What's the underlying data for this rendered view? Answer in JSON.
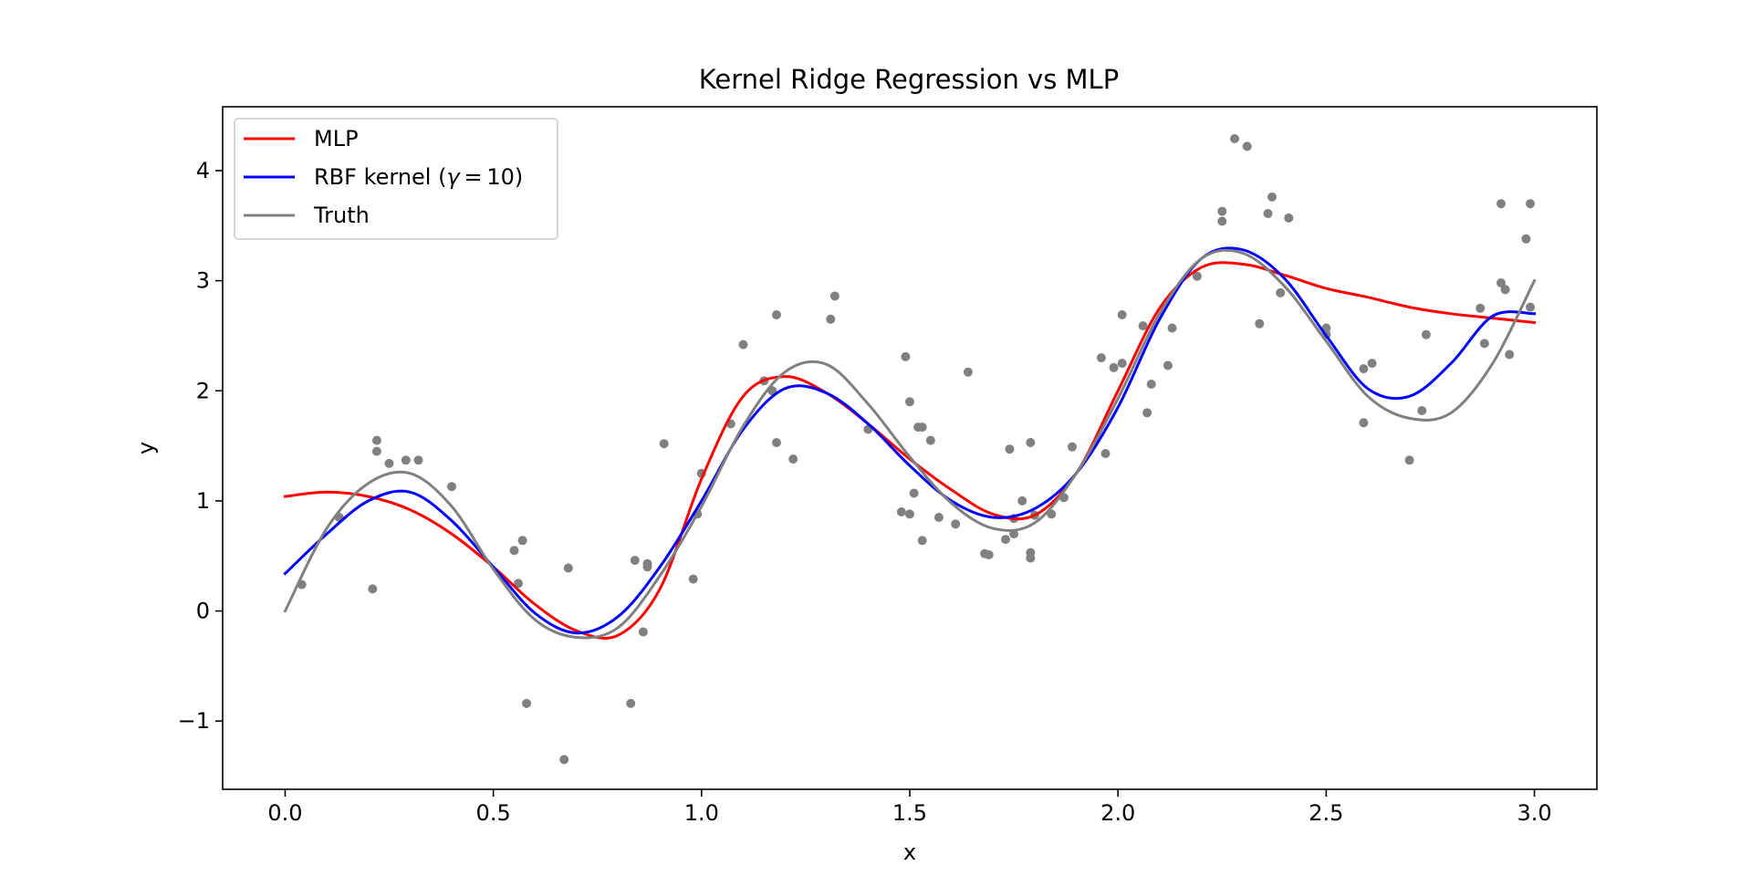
{
  "chart_data": {
    "type": "line",
    "title": "Kernel Ridge Regression vs MLP",
    "xlabel": "x",
    "ylabel": "y",
    "xlim": [
      -0.15,
      3.15
    ],
    "ylim": [
      -1.62,
      4.58
    ],
    "xticks": [
      0.0,
      0.5,
      1.0,
      1.5,
      2.0,
      2.5,
      3.0
    ],
    "xtick_labels": [
      "0.0",
      "0.5",
      "1.0",
      "1.5",
      "2.0",
      "2.5",
      "3.0"
    ],
    "yticks": [
      -1,
      0,
      1,
      2,
      3,
      4
    ],
    "ytick_labels": [
      "−1",
      "0",
      "1",
      "2",
      "3",
      "4"
    ],
    "grid": false,
    "legend_position": "top-left",
    "legend": {
      "mlp": "MLP",
      "rbf_prefix": "RBF kernel (",
      "rbf_gamma": "γ",
      "rbf_suffix": " = 10)",
      "truth": "Truth"
    },
    "series": [
      {
        "name": "MLP",
        "color": "#ff0000",
        "x": [
          0.0,
          0.1,
          0.2,
          0.3,
          0.4,
          0.5,
          0.6,
          0.7,
          0.8,
          0.9,
          1.0,
          1.1,
          1.2,
          1.3,
          1.4,
          1.5,
          1.6,
          1.7,
          1.8,
          1.9,
          2.0,
          2.1,
          2.2,
          2.3,
          2.4,
          2.5,
          2.6,
          2.7,
          2.8,
          2.9,
          3.0
        ],
        "y": [
          1.04,
          1.08,
          1.04,
          0.92,
          0.7,
          0.4,
          0.06,
          -0.18,
          -0.22,
          0.2,
          1.2,
          1.95,
          2.13,
          1.98,
          1.7,
          1.38,
          1.1,
          0.88,
          0.87,
          1.25,
          2.0,
          2.75,
          3.12,
          3.15,
          3.05,
          2.93,
          2.85,
          2.76,
          2.7,
          2.66,
          2.62
        ]
      },
      {
        "name": "RBF kernel (γ = 10)",
        "color": "#0000ff",
        "x": [
          0.0,
          0.1,
          0.2,
          0.3,
          0.4,
          0.5,
          0.6,
          0.7,
          0.8,
          0.9,
          1.0,
          1.1,
          1.2,
          1.3,
          1.4,
          1.5,
          1.6,
          1.7,
          1.8,
          1.9,
          2.0,
          2.1,
          2.2,
          2.3,
          2.4,
          2.5,
          2.6,
          2.7,
          2.8,
          2.9,
          3.0
        ],
        "y": [
          0.34,
          0.7,
          1.0,
          1.08,
          0.82,
          0.4,
          -0.02,
          -0.2,
          -0.05,
          0.4,
          1.0,
          1.65,
          2.02,
          1.98,
          1.7,
          1.32,
          1.0,
          0.85,
          0.93,
          1.25,
          1.85,
          2.65,
          3.2,
          3.28,
          3.02,
          2.5,
          2.02,
          1.95,
          2.25,
          2.68,
          2.7
        ]
      },
      {
        "name": "Truth",
        "color": "#808080",
        "x": [
          0.0,
          0.1,
          0.2,
          0.3,
          0.4,
          0.5,
          0.6,
          0.7,
          0.8,
          0.9,
          1.0,
          1.1,
          1.2,
          1.3,
          1.4,
          1.5,
          1.6,
          1.7,
          1.8,
          1.9,
          2.0,
          2.1,
          2.2,
          2.3,
          2.4,
          2.5,
          2.6,
          2.7,
          2.8,
          2.9,
          3.0
        ],
        "y": [
          0.0,
          0.75,
          1.16,
          1.25,
          0.95,
          0.38,
          -0.08,
          -0.24,
          -0.15,
          0.32,
          0.95,
          1.68,
          2.17,
          2.24,
          1.88,
          1.4,
          0.98,
          0.75,
          0.8,
          1.25,
          1.93,
          2.7,
          3.2,
          3.25,
          2.95,
          2.45,
          1.95,
          1.75,
          1.8,
          2.25,
          3.0
        ]
      }
    ],
    "scatter": {
      "color": "#808080",
      "x": [
        0.04,
        0.13,
        0.21,
        0.22,
        0.22,
        0.25,
        0.29,
        0.32,
        0.4,
        0.55,
        0.56,
        0.57,
        0.58,
        0.67,
        0.68,
        0.83,
        0.84,
        0.86,
        0.87,
        0.87,
        0.91,
        0.98,
        0.99,
        1.0,
        1.07,
        1.1,
        1.15,
        1.17,
        1.18,
        1.18,
        1.22,
        1.31,
        1.32,
        1.4,
        1.48,
        1.49,
        1.5,
        1.5,
        1.51,
        1.52,
        1.53,
        1.53,
        1.55,
        1.57,
        1.61,
        1.64,
        1.68,
        1.69,
        1.73,
        1.74,
        1.75,
        1.75,
        1.77,
        1.79,
        1.79,
        1.79,
        1.8,
        1.84,
        1.87,
        1.89,
        1.96,
        1.97,
        1.99,
        2.01,
        2.01,
        2.06,
        2.07,
        2.08,
        2.12,
        2.13,
        2.19,
        2.25,
        2.25,
        2.28,
        2.31,
        2.34,
        2.36,
        2.37,
        2.39,
        2.41,
        2.5,
        2.5,
        2.59,
        2.59,
        2.61,
        2.7,
        2.73,
        2.74,
        2.87,
        2.88,
        2.92,
        2.92,
        2.93,
        2.94,
        2.98,
        2.99,
        2.99
      ],
      "y": [
        0.24,
        0.85,
        0.2,
        1.55,
        1.45,
        1.34,
        1.37,
        1.37,
        1.13,
        0.55,
        0.25,
        0.64,
        -0.84,
        -1.35,
        0.39,
        -0.84,
        0.46,
        -0.19,
        0.43,
        0.4,
        1.52,
        0.29,
        0.88,
        1.25,
        1.7,
        2.42,
        2.09,
        2.0,
        2.69,
        1.53,
        1.38,
        2.65,
        2.86,
        1.65,
        0.9,
        2.31,
        1.9,
        0.88,
        1.07,
        1.67,
        0.64,
        1.67,
        1.55,
        0.85,
        0.79,
        2.17,
        0.52,
        0.51,
        0.65,
        1.47,
        0.7,
        0.84,
        1.0,
        0.48,
        0.53,
        1.53,
        0.87,
        0.88,
        1.03,
        1.49,
        2.3,
        1.43,
        2.21,
        2.69,
        2.25,
        2.59,
        1.8,
        2.06,
        2.23,
        2.57,
        3.04,
        3.63,
        3.54,
        4.29,
        4.22,
        2.61,
        3.61,
        3.76,
        2.89,
        3.57,
        2.57,
        2.51,
        2.2,
        1.71,
        2.25,
        1.37,
        1.82,
        2.51,
        2.75,
        2.43,
        3.7,
        2.98,
        2.92,
        2.33,
        3.38,
        2.76,
        3.7
      ]
    }
  }
}
